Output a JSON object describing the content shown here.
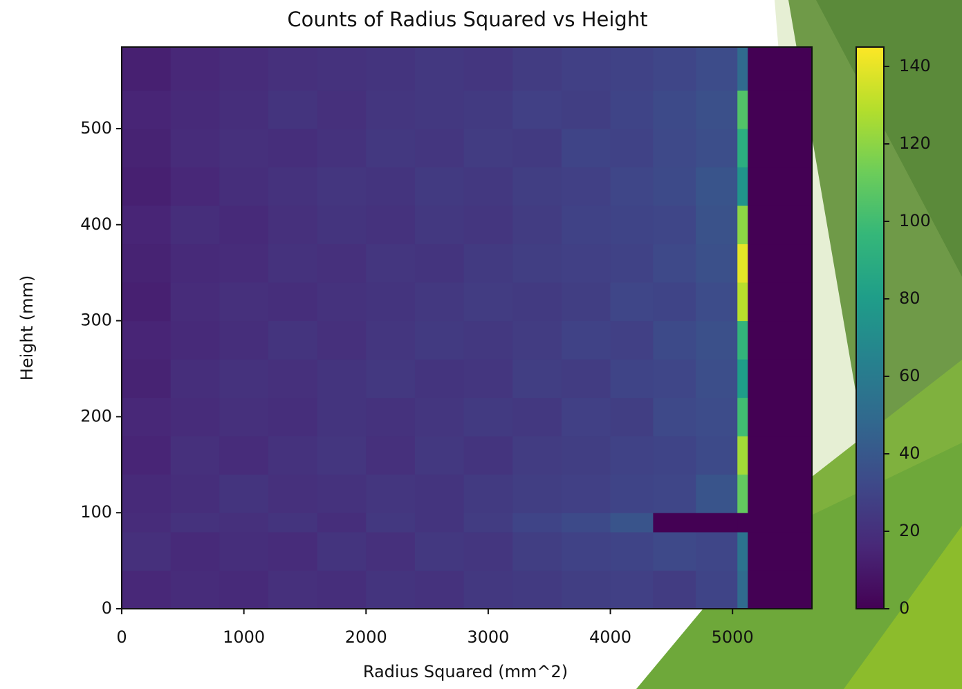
{
  "chart_data": {
    "type": "hist2d",
    "title": "Counts of Radius Squared vs Height",
    "x_label": "Radius Squared (mm^2)",
    "y_label": "Height (mm)",
    "x_bins": [
      0,
      400,
      800,
      1200,
      1600,
      2000,
      2400,
      2800,
      3200,
      3600,
      4000,
      4350,
      4700,
      5040,
      5125,
      5650
    ],
    "y_bins": [
      0,
      40,
      80,
      100,
      140,
      180,
      220,
      260,
      300,
      340,
      380,
      420,
      460,
      500,
      540,
      585
    ],
    "values": [
      [
        16,
        18,
        17,
        20,
        19,
        22,
        21,
        24,
        25,
        27,
        28,
        26,
        30,
        50,
        0
      ],
      [
        20,
        17,
        19,
        18,
        22,
        20,
        24,
        23,
        27,
        29,
        30,
        32,
        31,
        55,
        0
      ],
      [
        18,
        21,
        20,
        22,
        19,
        24,
        22,
        26,
        30,
        33,
        38,
        0,
        0,
        0,
        0
      ],
      [
        17,
        19,
        22,
        20,
        21,
        23,
        22,
        25,
        27,
        28,
        30,
        31,
        38,
        110,
        0
      ],
      [
        15,
        20,
        18,
        21,
        23,
        20,
        24,
        22,
        26,
        27,
        29,
        30,
        33,
        125,
        0
      ],
      [
        16,
        18,
        20,
        19,
        22,
        21,
        23,
        25,
        24,
        28,
        27,
        32,
        34,
        100,
        0
      ],
      [
        14,
        19,
        21,
        20,
        22,
        24,
        22,
        23,
        27,
        26,
        30,
        31,
        35,
        80,
        0
      ],
      [
        15,
        17,
        19,
        22,
        20,
        23,
        25,
        24,
        26,
        29,
        28,
        33,
        36,
        95,
        0
      ],
      [
        13,
        18,
        20,
        19,
        21,
        22,
        24,
        26,
        25,
        27,
        31,
        30,
        34,
        130,
        0
      ],
      [
        14,
        17,
        18,
        21,
        20,
        23,
        22,
        25,
        27,
        28,
        29,
        32,
        36,
        140,
        0
      ],
      [
        15,
        19,
        17,
        20,
        22,
        21,
        24,
        23,
        26,
        29,
        30,
        31,
        37,
        120,
        0
      ],
      [
        13,
        16,
        19,
        21,
        23,
        22,
        25,
        24,
        27,
        28,
        31,
        33,
        38,
        75,
        0
      ],
      [
        14,
        18,
        20,
        19,
        21,
        24,
        23,
        26,
        25,
        30,
        29,
        32,
        35,
        90,
        0
      ],
      [
        15,
        17,
        19,
        22,
        20,
        23,
        24,
        25,
        28,
        27,
        30,
        33,
        36,
        105,
        0
      ],
      [
        13,
        16,
        18,
        20,
        21,
        22,
        24,
        23,
        26,
        28,
        29,
        31,
        34,
        50,
        0
      ]
    ],
    "xlim": [
      0,
      5650
    ],
    "xticks": [
      0,
      1000,
      2000,
      3000,
      4000,
      5000
    ],
    "ylim": [
      0,
      585
    ],
    "yticks": [
      0,
      100,
      200,
      300,
      400,
      500
    ],
    "colormap": "viridis",
    "clim": [
      0,
      145
    ],
    "cticks": [
      0,
      20,
      40,
      60,
      80,
      100,
      120,
      140
    ]
  }
}
